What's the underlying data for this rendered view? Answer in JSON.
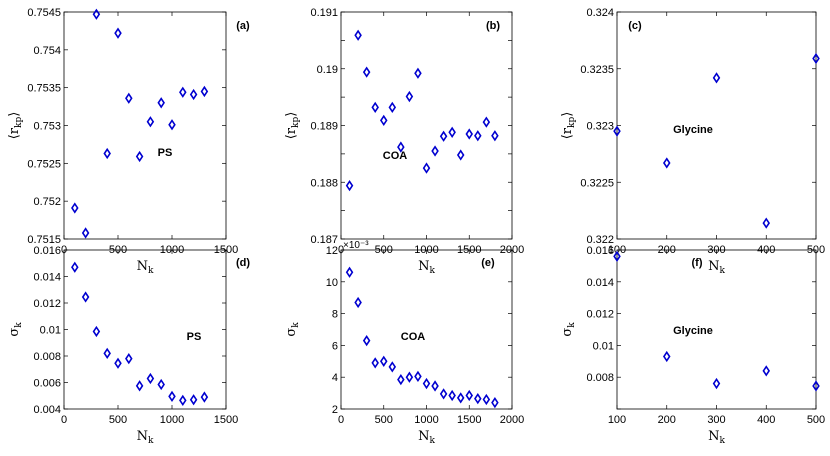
{
  "marker_color": "#0000d0",
  "chart_data": [
    {
      "type": "scatter",
      "panel_label": "(a)",
      "annotation": "PS",
      "xlabel": "N",
      "xlabel_sub": "k",
      "ylabel": "⟨r",
      "ylabel_sub": "kp",
      "ylabel_end": "⟩",
      "xlim": [
        0,
        1500
      ],
      "ylim": [
        0.7515,
        0.7545
      ],
      "xticks": [
        0,
        500,
        1000,
        1500
      ],
      "xticklabels": [
        "0",
        "500",
        "1000",
        "1500"
      ],
      "yticks": [
        0.7515,
        0.752,
        0.7525,
        0.753,
        0.7535,
        0.754,
        0.7545
      ],
      "yticklabels": [
        "0.7515",
        "0.752",
        "0.7525",
        "0.753",
        "0.7535",
        "0.754",
        "0.7545"
      ],
      "x": [
        100,
        200,
        300,
        400,
        500,
        600,
        700,
        800,
        900,
        1000,
        1100,
        1200,
        1300
      ],
      "y": [
        0.75191,
        0.75158,
        0.75447,
        0.75263,
        0.75422,
        0.75336,
        0.75259,
        0.75305,
        0.7533,
        0.75301,
        0.75344,
        0.75341,
        0.75345
      ]
    },
    {
      "type": "scatter",
      "panel_label": "(b)",
      "annotation": "COA",
      "xlabel": "N",
      "xlabel_sub": "k",
      "ylabel": "⟨r",
      "ylabel_sub": "kp",
      "ylabel_end": "⟩",
      "xlim": [
        0,
        2000
      ],
      "ylim": [
        0.187,
        0.191
      ],
      "xticks": [
        0,
        500,
        1000,
        1500,
        2000
      ],
      "xticklabels": [
        "0",
        "500",
        "1000",
        "1500",
        "2000"
      ],
      "yticks": [
        0.187,
        0.1875,
        0.188,
        0.1885,
        0.189,
        0.1895,
        0.19,
        0.1905,
        0.191
      ],
      "yticklabels": [
        "0.187",
        "",
        "0.188",
        "",
        "0.189",
        "",
        "0.19",
        "",
        "0.191"
      ],
      "x": [
        100,
        200,
        300,
        400,
        500,
        600,
        700,
        800,
        900,
        1000,
        1100,
        1200,
        1300,
        1400,
        1500,
        1600,
        1700,
        1800
      ],
      "y": [
        0.18794,
        0.19059,
        0.18994,
        0.18932,
        0.18909,
        0.18932,
        0.18862,
        0.18951,
        0.18992,
        0.18825,
        0.18855,
        0.18881,
        0.18888,
        0.18848,
        0.18885,
        0.18882,
        0.18906,
        0.18882
      ]
    },
    {
      "type": "scatter",
      "panel_label": "(c)",
      "annotation": "Glycine",
      "xlabel": "N",
      "xlabel_sub": "k",
      "ylabel": "⟨r",
      "ylabel_sub": "kp",
      "ylabel_end": "⟩",
      "xlim": [
        100,
        500
      ],
      "ylim": [
        0.322,
        0.324
      ],
      "xticks": [
        100,
        200,
        300,
        400,
        500
      ],
      "xticklabels": [
        "100",
        "200",
        "300",
        "400",
        "500"
      ],
      "yticks": [
        0.322,
        0.3225,
        0.323,
        0.3235,
        0.324
      ],
      "yticklabels": [
        "0.322",
        "0.3225",
        "0.323",
        "0.3235",
        "0.324"
      ],
      "x": [
        100,
        200,
        300,
        400,
        500
      ],
      "y": [
        0.32295,
        0.32267,
        0.32342,
        0.32214,
        0.32359
      ]
    },
    {
      "type": "scatter",
      "panel_label": "(d)",
      "annotation": "PS",
      "xlabel": "N",
      "xlabel_sub": "k",
      "ylabel": "σ",
      "ylabel_sub": "k",
      "ylabel_end": "",
      "xlim": [
        0,
        1500
      ],
      "ylim": [
        0.004,
        0.016
      ],
      "xticks": [
        0,
        500,
        1000,
        1500
      ],
      "xticklabels": [
        "0",
        "500",
        "1000",
        "1500"
      ],
      "yticks": [
        0.004,
        0.006,
        0.008,
        0.01,
        0.012,
        0.014,
        0.016
      ],
      "yticklabels": [
        "0.004",
        "0.006",
        "0.008",
        "0.01",
        "0.012",
        "0.014",
        "0.016"
      ],
      "x": [
        100,
        200,
        300,
        400,
        500,
        600,
        700,
        800,
        900,
        1000,
        1100,
        1200,
        1300
      ],
      "y": [
        0.0147,
        0.01245,
        0.00985,
        0.0082,
        0.00745,
        0.0078,
        0.00575,
        0.0063,
        0.00585,
        0.00495,
        0.00465,
        0.0047,
        0.0049
      ]
    },
    {
      "type": "scatter",
      "panel_label": "(e)",
      "annotation": "COA",
      "exponent": "×10⁻³",
      "xlabel": "N",
      "xlabel_sub": "k",
      "ylabel": "σ",
      "ylabel_sub": "k",
      "ylabel_end": "",
      "xlim": [
        0,
        2000
      ],
      "ylim": [
        2,
        12
      ],
      "xticks": [
        0,
        500,
        1000,
        1500,
        2000
      ],
      "xticklabels": [
        "0",
        "500",
        "1000",
        "1500",
        "2000"
      ],
      "yticks": [
        2,
        4,
        6,
        8,
        10,
        12
      ],
      "yticklabels": [
        "2",
        "4",
        "6",
        "8",
        "10",
        "12"
      ],
      "x": [
        100,
        200,
        300,
        400,
        500,
        600,
        700,
        800,
        900,
        1000,
        1100,
        1200,
        1300,
        1400,
        1500,
        1600,
        1700,
        1800
      ],
      "y": [
        10.6,
        8.7,
        6.3,
        4.9,
        5.0,
        4.65,
        3.85,
        4.0,
        4.05,
        3.6,
        3.45,
        2.95,
        2.85,
        2.7,
        2.85,
        2.65,
        2.6,
        2.4
      ]
    },
    {
      "type": "scatter",
      "panel_label": "(f)",
      "annotation": "Glycine",
      "xlabel": "N",
      "xlabel_sub": "k",
      "ylabel": "σ",
      "ylabel_sub": "k",
      "ylabel_end": "",
      "xlim": [
        100,
        500
      ],
      "ylim": [
        0.006,
        0.016
      ],
      "xticks": [
        100,
        200,
        300,
        400,
        500
      ],
      "xticklabels": [
        "100",
        "200",
        "300",
        "400",
        "500"
      ],
      "yticks": [
        0.006,
        0.008,
        0.01,
        0.012,
        0.014,
        0.016
      ],
      "yticklabels": [
        "",
        "0.008",
        "0.01",
        "0.012",
        "0.014",
        "0.016"
      ],
      "x": [
        100,
        200,
        300,
        400,
        500
      ],
      "y": [
        0.0156,
        0.0093,
        0.0076,
        0.0084,
        0.00745
      ]
    }
  ]
}
